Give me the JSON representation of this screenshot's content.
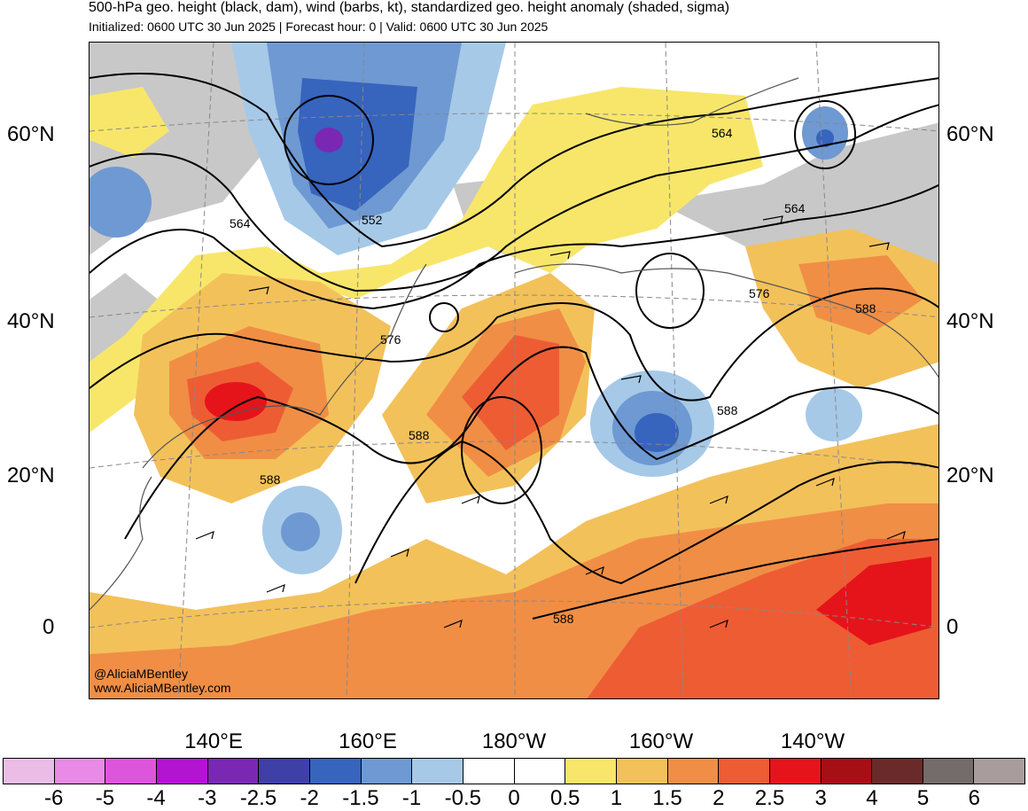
{
  "header": {
    "title": "500-hPa geo. height (black, dam), wind (barbs, kt), standardized geo. height anomaly (shaded, sigma)",
    "subtitle": "Initialized: 0600 UTC 30 Jun 2025 | Forecast hour: 0 | Valid: 0600 UTC 30 Jun 2025"
  },
  "map": {
    "lat_labels": [
      "60°N",
      "40°N",
      "20°N",
      "0"
    ],
    "lon_labels": [
      "140°E",
      "160°E",
      "180°W",
      "160°W",
      "140°W"
    ],
    "contour_labels": [
      "564",
      "552",
      "564",
      "564",
      "576",
      "576",
      "588",
      "588",
      "588",
      "588",
      "588"
    ],
    "credit_1": "@AliciaMBentley",
    "credit_2": "www.AliciaMBentley.com"
  },
  "colorbar": {
    "labels": [
      "-6",
      "-5",
      "-4",
      "-3",
      "-2.5",
      "-2",
      "-1.5",
      "-1",
      "-0.5",
      "0",
      "0.5",
      "1",
      "1.5",
      "2",
      "2.5",
      "3",
      "4",
      "5",
      "6"
    ],
    "colors": [
      "#ebbde6",
      "#e98ae6",
      "#dd55dd",
      "#b314d2",
      "#7a28b4",
      "#3f3fa8",
      "#3764bd",
      "#6e99d2",
      "#a6c9e8",
      "#ffffff",
      "#ffffff",
      "#f8e66a",
      "#f3c15a",
      "#f08e45",
      "#ee5c34",
      "#e5141a",
      "#a50f15",
      "#6b2a2a",
      "#756b6b",
      "#a89c9c"
    ]
  }
}
